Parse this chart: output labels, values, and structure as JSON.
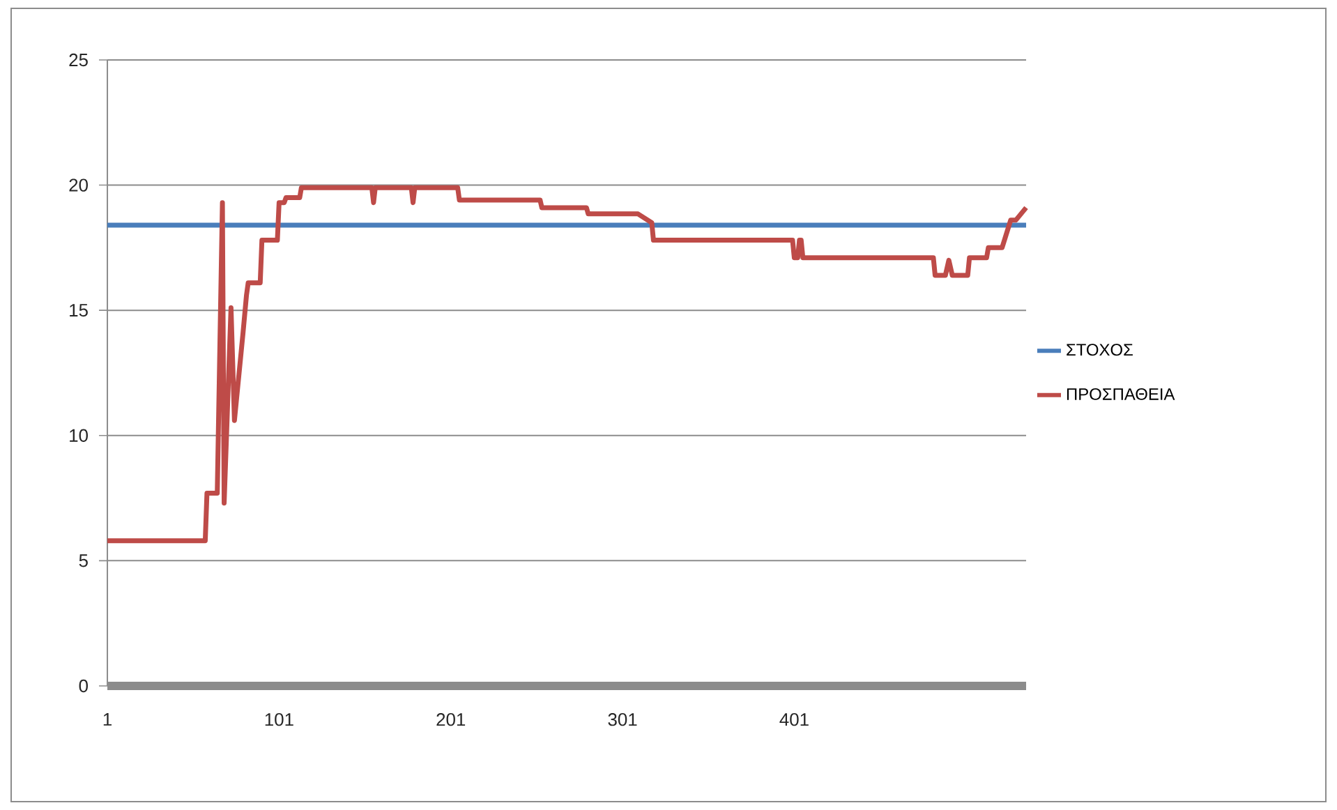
{
  "chart_data": {
    "type": "line",
    "xlim": [
      1,
      536
    ],
    "xticks": [
      1,
      101,
      201,
      301,
      401
    ],
    "ylim": [
      0,
      25
    ],
    "yticks": [
      0,
      5,
      10,
      15,
      20,
      25
    ],
    "grid": "y",
    "legend": "right",
    "series": [
      {
        "name": "ΣΤΟΧΟΣ",
        "color": "#4a7ebb",
        "x": [
          1,
          536
        ],
        "values": [
          18.4,
          18.4
        ]
      },
      {
        "name": "ΠΡΟΣΠΑΘΕΙΑ",
        "color": "#be4b48",
        "x": [
          1,
          58,
          59,
          65,
          68,
          69,
          73,
          75,
          80,
          82,
          83,
          90,
          91,
          100,
          101,
          104,
          105,
          113,
          114,
          155,
          156,
          157,
          178,
          179,
          180,
          205,
          206,
          253,
          254,
          280,
          281,
          310,
          318,
          319,
          400,
          401,
          403,
          404,
          405,
          406,
          482,
          483,
          489,
          491,
          493,
          502,
          503,
          513,
          514,
          522,
          527,
          530,
          536
        ],
        "values": [
          5.8,
          5.8,
          7.7,
          7.7,
          19.3,
          7.3,
          15.1,
          10.6,
          14.1,
          15.6,
          16.1,
          16.1,
          17.8,
          17.8,
          19.3,
          19.3,
          19.5,
          19.5,
          19.9,
          19.9,
          19.3,
          19.9,
          19.9,
          19.3,
          19.9,
          19.9,
          19.4,
          19.4,
          19.1,
          19.1,
          18.85,
          18.85,
          18.5,
          17.8,
          17.8,
          17.1,
          17.1,
          17.8,
          17.8,
          17.1,
          17.1,
          16.4,
          16.4,
          17.0,
          16.4,
          16.4,
          17.1,
          17.1,
          17.5,
          17.5,
          18.6,
          18.6,
          19.1
        ]
      }
    ]
  }
}
